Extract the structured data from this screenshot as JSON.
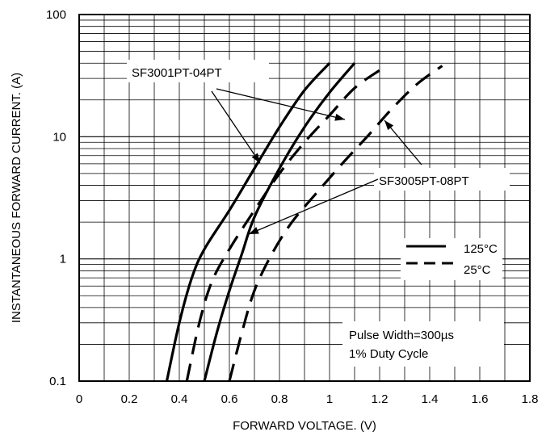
{
  "chart_data": {
    "type": "line",
    "xlabel": "FORWARD VOLTAGE. (V)",
    "ylabel": "INSTANTANEOUS FORWARD CURRENT. (A)",
    "xlim": [
      0,
      1.8
    ],
    "ylim": [
      0.1,
      100
    ],
    "y_scale": "log",
    "x_ticks": [
      0,
      0.2,
      0.4,
      0.6,
      0.8,
      1,
      1.2,
      1.4,
      1.6,
      1.8
    ],
    "x_tick_labels": [
      "0",
      "0.2",
      "0.4",
      "0.6",
      "0.8",
      "1",
      "1.2",
      "1.4",
      "1.6",
      "1.8"
    ],
    "y_ticks": [
      0.1,
      1,
      10,
      100
    ],
    "y_tick_labels": [
      "0.1",
      "1",
      "10",
      "100"
    ],
    "grid": true,
    "legend": {
      "position": "right",
      "entries": [
        {
          "label": "125°C",
          "style": "solid"
        },
        {
          "label": "25°C",
          "style": "dashed"
        }
      ]
    },
    "annotations": [
      {
        "text": "SF3001PT-04PT"
      },
      {
        "text": "SF3005PT-08PT"
      },
      {
        "text": "Pulse Width=300µs"
      },
      {
        "text": "1% Duty Cycle"
      }
    ],
    "series": [
      {
        "style": "solid",
        "points": [
          [
            0.35,
            0.1
          ],
          [
            0.4,
            0.3
          ],
          [
            0.45,
            0.7
          ],
          [
            0.5,
            1.2
          ],
          [
            0.6,
            2.5
          ],
          [
            0.7,
            5.5
          ],
          [
            0.8,
            12
          ],
          [
            0.9,
            24
          ],
          [
            1.0,
            40
          ]
        ]
      },
      {
        "style": "dashed",
        "points": [
          [
            0.43,
            0.1
          ],
          [
            0.48,
            0.3
          ],
          [
            0.53,
            0.65
          ],
          [
            0.6,
            1.2
          ],
          [
            0.7,
            2.5
          ],
          [
            0.8,
            5
          ],
          [
            0.9,
            9
          ],
          [
            1.0,
            15
          ],
          [
            1.1,
            25
          ],
          [
            1.2,
            35
          ]
        ]
      },
      {
        "style": "solid",
        "points": [
          [
            0.5,
            0.1
          ],
          [
            0.55,
            0.25
          ],
          [
            0.6,
            0.55
          ],
          [
            0.65,
            1.1
          ],
          [
            0.7,
            2.2
          ],
          [
            0.8,
            5.5
          ],
          [
            0.9,
            12
          ],
          [
            1.0,
            23
          ],
          [
            1.1,
            40
          ]
        ]
      },
      {
        "style": "dashed",
        "points": [
          [
            0.6,
            0.1
          ],
          [
            0.65,
            0.25
          ],
          [
            0.7,
            0.55
          ],
          [
            0.77,
            1.1
          ],
          [
            0.85,
            2
          ],
          [
            0.95,
            3.5
          ],
          [
            1.05,
            6
          ],
          [
            1.15,
            10
          ],
          [
            1.25,
            17
          ],
          [
            1.35,
            27
          ],
          [
            1.45,
            38
          ]
        ]
      }
    ]
  }
}
